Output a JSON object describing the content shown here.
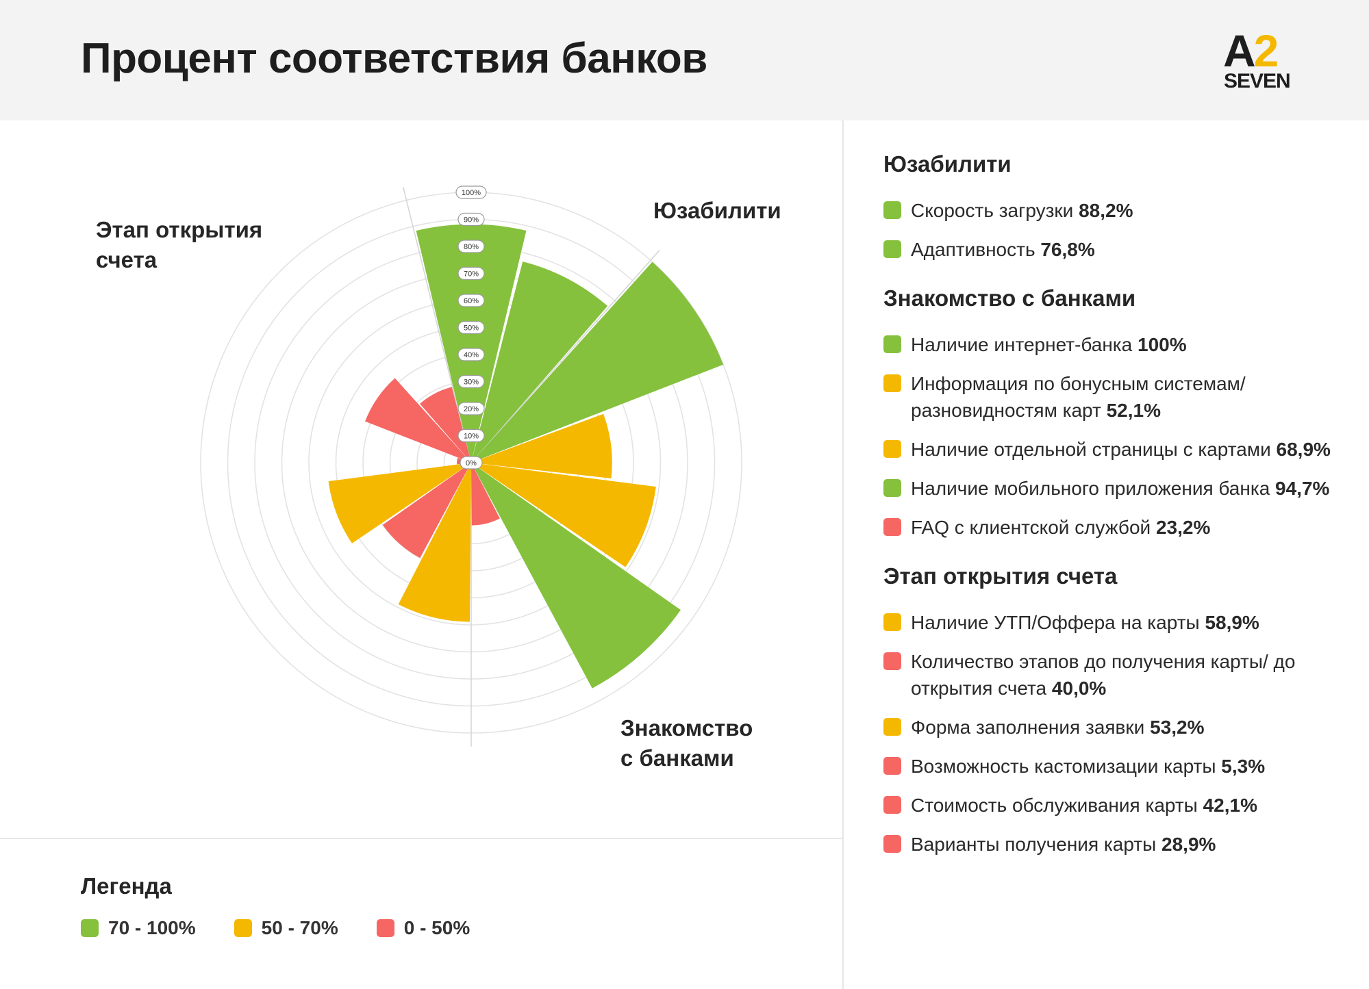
{
  "header": {
    "title": "Процент соответствия банков"
  },
  "logo": {
    "top": "A",
    "accent": "2",
    "bottom": "SEVEN",
    "accent_color": "#f5b800"
  },
  "colors": {
    "high": "#85c13d",
    "mid": "#f5b800",
    "low": "#f66662"
  },
  "group_labels": {
    "usability": "Юзабилити",
    "acquaintance": "Знакомство\nс банками",
    "opening": "Этап открытия\nсчета"
  },
  "legend": {
    "title": "Легенда",
    "items": [
      {
        "label": "70 - 100%",
        "color": "#85c13d"
      },
      {
        "label": "50 - 70%",
        "color": "#f5b800"
      },
      {
        "label": "0 - 50%",
        "color": "#f66662"
      }
    ]
  },
  "sections": [
    {
      "title": "Юзабилити",
      "items": [
        {
          "text": "Скорость загрузки",
          "value": "88,2%",
          "color": "#85c13d"
        },
        {
          "text": "Адаптивность",
          "value": "76,8%",
          "color": "#85c13d"
        }
      ]
    },
    {
      "title": "Знакомство с банками",
      "items": [
        {
          "text": "Наличие интернет-банка",
          "value": "100%",
          "color": "#85c13d"
        },
        {
          "text": "Информация по бонусным системам/ разновидностям карт",
          "value": "52,1%",
          "color": "#f5b800"
        },
        {
          "text": "Наличие отдельной страницы с картами",
          "value": "68,9%",
          "color": "#f5b800"
        },
        {
          "text": "Наличие мобильного приложения банка",
          "value": "94,7%",
          "color": "#85c13d"
        },
        {
          "text": "FAQ с клиентской службой",
          "value": "23,2%",
          "color": "#f66662"
        }
      ]
    },
    {
      "title": "Этап открытия счета",
      "items": [
        {
          "text": "Наличие УТП/Оффера на карты",
          "value": "58,9%",
          "color": "#f5b800"
        },
        {
          "text": "Количество этапов до получения карты/ до открытия счета",
          "value": "40,0%",
          "color": "#f66662"
        },
        {
          "text": "Форма заполнения заявки",
          "value": "53,2%",
          "color": "#f5b800"
        },
        {
          "text": "Возможность кастомизации карты",
          "value": "5,3%",
          "color": "#f66662"
        },
        {
          "text": "Стоимость обслуживания карты",
          "value": "42,1%",
          "color": "#f66662"
        },
        {
          "text": "Варианты получения карты",
          "value": "28,9%",
          "color": "#f66662"
        }
      ]
    }
  ],
  "chart_data": {
    "type": "polar-bar",
    "radial_ticks": [
      "0%",
      "10%",
      "20%",
      "30%",
      "40%",
      "50%",
      "60%",
      "70%",
      "80%",
      "90%",
      "100%"
    ],
    "rlim": [
      0,
      100
    ],
    "series": [
      {
        "category": "Скорость загрузки",
        "group": "Юзабилити",
        "value": 88.2,
        "color": "#85c13d"
      },
      {
        "category": "Адаптивность",
        "group": "Юзабилити",
        "value": 76.8,
        "color": "#85c13d"
      },
      {
        "category": "Наличие интернет-банка",
        "group": "Знакомство с банками",
        "value": 100,
        "color": "#85c13d"
      },
      {
        "category": "Информация по бонусным системам/ разновидностям карт",
        "group": "Знакомство с банками",
        "value": 52.1,
        "color": "#f5b800"
      },
      {
        "category": "Наличие отдельной страницы с картами",
        "group": "Знакомство с банками",
        "value": 68.9,
        "color": "#f5b800"
      },
      {
        "category": "Наличие мобильного приложения банка",
        "group": "Знакомство с банками",
        "value": 94.7,
        "color": "#85c13d"
      },
      {
        "category": "FAQ с клиентской службой",
        "group": "Знакомство с банками",
        "value": 23.2,
        "color": "#f66662"
      },
      {
        "category": "Наличие УТП/Оффера на карты",
        "group": "Этап открытия счета",
        "value": 58.9,
        "color": "#f5b800"
      },
      {
        "category": "Количество этапов до получения карты/ до открытия счета",
        "group": "Этап открытия счета",
        "value": 40.0,
        "color": "#f66662"
      },
      {
        "category": "Форма заполнения заявки",
        "group": "Этап открытия счета",
        "value": 53.2,
        "color": "#f5b800"
      },
      {
        "category": "Возможность кастомизации карты",
        "group": "Этап открытия счета",
        "value": 5.3,
        "color": "#f66662"
      },
      {
        "category": "Стоимость обслуживания карты",
        "group": "Этап открытия счета",
        "value": 42.1,
        "color": "#f66662"
      },
      {
        "category": "Варианты получения карты",
        "group": "Этап открытия счета",
        "value": 28.9,
        "color": "#f66662"
      }
    ]
  }
}
